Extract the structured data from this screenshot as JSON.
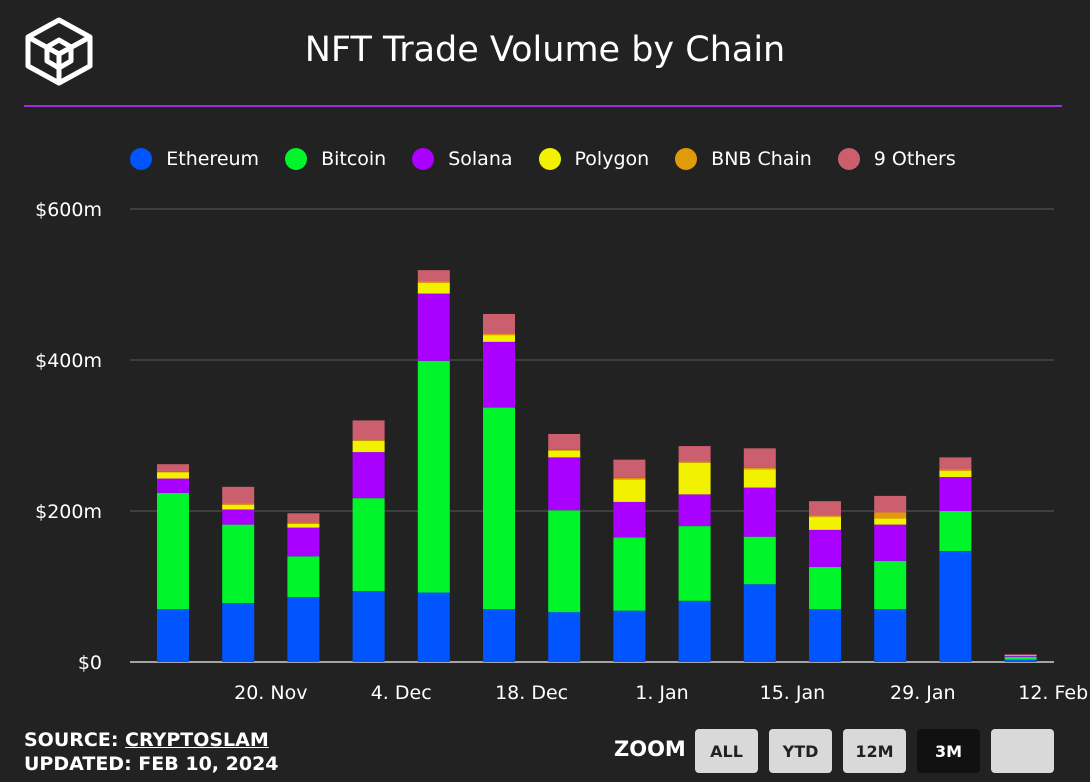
{
  "header": {
    "title": "NFT Trade Volume by Chain"
  },
  "legend": {
    "items": [
      {
        "label": "Ethereum",
        "color": "#0055ff"
      },
      {
        "label": "Bitcoin",
        "color": "#00f52a"
      },
      {
        "label": "Solana",
        "color": "#aa00ff"
      },
      {
        "label": "Polygon",
        "color": "#f2f200"
      },
      {
        "label": "BNB Chain",
        "color": "#e09a0a"
      },
      {
        "label": "9 Others",
        "color": "#cc5f6e"
      }
    ]
  },
  "footer": {
    "source_label": "SOURCE:",
    "source_link": "CRYPTOSLAM",
    "updated_label": "UPDATED:",
    "updated_value": "FEB 10, 2024"
  },
  "zoom": {
    "label": "ZOOM",
    "buttons": [
      "ALL",
      "YTD",
      "12M",
      "3M",
      ""
    ],
    "active": "3M"
  },
  "chart_data": {
    "type": "bar",
    "stacked": true,
    "title": "NFT Trade Volume by Chain",
    "xlabel": "",
    "ylabel": "",
    "ylim": [
      0,
      600
    ],
    "yticks": [
      0,
      200,
      400,
      600
    ],
    "ytick_labels": [
      "$0",
      "$200m",
      "$400m",
      "$600m"
    ],
    "xtick_labels": [
      "20. Nov",
      "4. Dec",
      "18. Dec",
      "1. Jan",
      "15. Jan",
      "29. Jan",
      "12. Feb"
    ],
    "xtick_positions": [
      1.5,
      3.5,
      5.5,
      7.5,
      9.5,
      11.5,
      13.5
    ],
    "categories": [
      "w1",
      "w2",
      "w3",
      "w4",
      "w5",
      "w6",
      "w7",
      "w8",
      "w9",
      "w10",
      "w11",
      "w12",
      "w13",
      "w14"
    ],
    "grid": true,
    "legend_position": "top",
    "series": [
      {
        "name": "Ethereum",
        "color": "#0055ff",
        "values": [
          70,
          78,
          86,
          94,
          92,
          70,
          66,
          68,
          81,
          103,
          70,
          70,
          147,
          3
        ]
      },
      {
        "name": "Bitcoin",
        "color": "#00f52a",
        "values": [
          154,
          104,
          54,
          123,
          307,
          267,
          135,
          97,
          99,
          63,
          56,
          64,
          53,
          4
        ]
      },
      {
        "name": "Solana",
        "color": "#aa00ff",
        "values": [
          19,
          20,
          38,
          61,
          89,
          87,
          70,
          47,
          42,
          65,
          49,
          48,
          45,
          1
        ]
      },
      {
        "name": "Polygon",
        "color": "#f2f200",
        "values": [
          8,
          6,
          5,
          15,
          14,
          9,
          9,
          30,
          42,
          24,
          17,
          8,
          8,
          1
        ]
      },
      {
        "name": "BNB Chain",
        "color": "#e09a0a",
        "values": [
          1,
          2,
          2,
          1,
          2,
          2,
          1,
          2,
          2,
          2,
          2,
          8,
          2,
          0
        ]
      },
      {
        "name": "9 Others",
        "color": "#cc5f6e",
        "values": [
          10,
          22,
          12,
          26,
          15,
          26,
          21,
          24,
          20,
          26,
          19,
          22,
          16,
          1
        ]
      }
    ]
  }
}
